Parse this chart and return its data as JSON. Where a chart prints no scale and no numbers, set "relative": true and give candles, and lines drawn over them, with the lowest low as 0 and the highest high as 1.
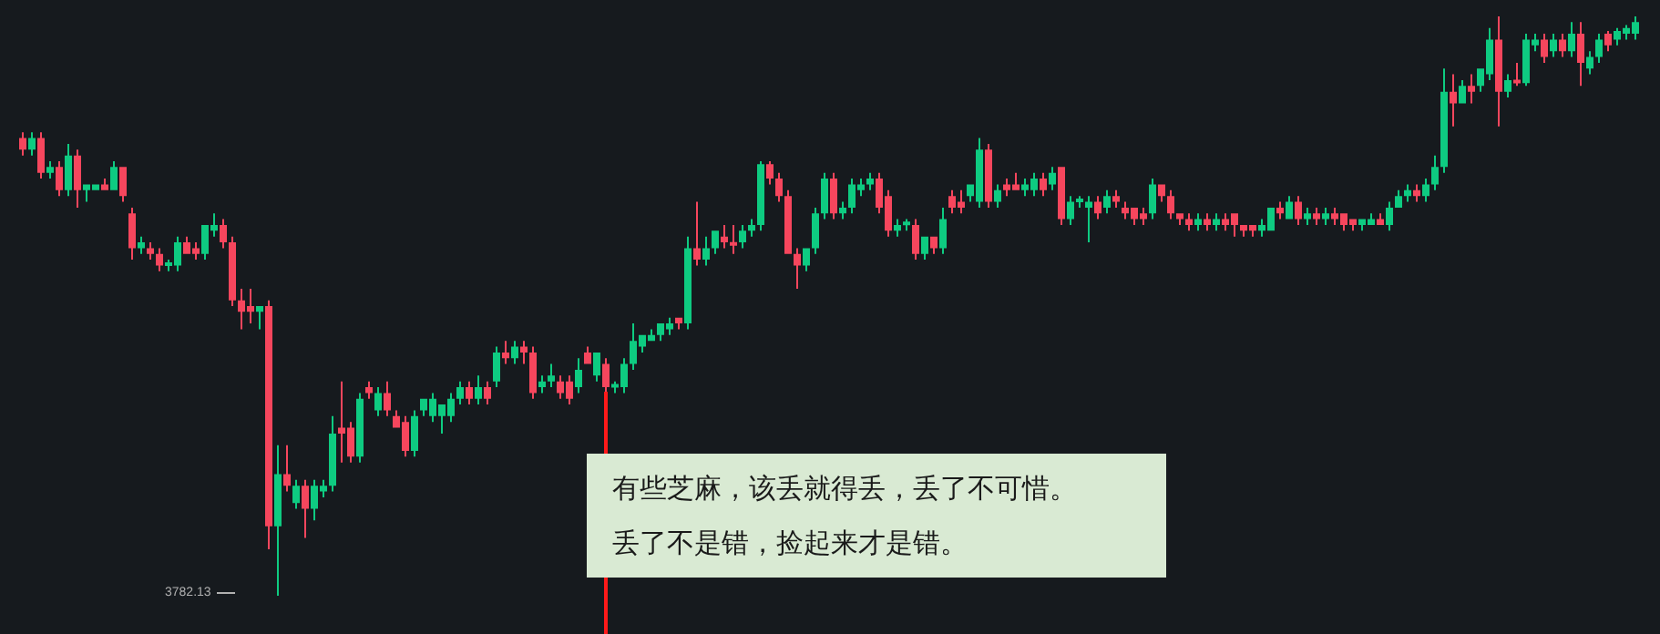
{
  "chart_data": {
    "type": "candlestick",
    "relative": true,
    "categories": [
      null,
      null,
      null,
      null,
      null,
      null,
      null,
      null,
      null,
      null,
      null,
      null,
      null,
      null,
      null,
      null,
      null,
      null,
      null,
      null,
      null,
      null,
      null,
      null,
      null,
      null,
      null,
      null,
      null,
      null,
      null,
      null,
      null,
      null,
      null,
      null,
      null,
      null,
      null,
      null,
      null,
      null,
      null,
      null,
      null,
      null,
      null,
      null,
      null,
      null,
      null,
      null,
      null,
      null,
      null,
      null,
      null,
      null,
      null,
      null,
      null,
      null,
      null,
      null,
      null,
      null,
      null,
      null,
      null,
      null,
      null,
      null,
      null,
      null,
      null,
      null,
      null,
      null,
      null,
      null,
      null,
      null,
      null,
      null,
      null,
      null,
      null,
      null,
      null,
      null,
      null,
      null,
      null,
      null,
      null,
      null,
      null,
      null,
      null,
      null,
      null,
      null,
      null,
      null,
      null,
      null,
      null,
      null,
      null,
      null,
      null,
      null,
      null,
      null,
      null,
      null,
      null,
      null,
      null,
      null,
      null,
      null,
      null,
      null,
      null,
      null,
      null,
      null,
      null,
      null,
      null,
      null,
      null,
      null,
      null,
      null,
      null,
      null,
      null,
      null,
      null,
      null,
      null,
      null,
      null,
      null,
      null,
      null,
      null,
      null,
      null,
      null,
      null,
      null,
      null,
      null,
      null,
      null,
      null,
      null,
      null,
      null,
      null,
      null,
      null,
      null,
      null,
      null,
      null,
      null,
      null,
      null,
      null,
      null,
      null,
      null,
      null,
      null
    ],
    "ohlc": [
      [
        0.79,
        0.8,
        0.76,
        0.77
      ],
      [
        0.77,
        0.8,
        0.76,
        0.79
      ],
      [
        0.79,
        0.8,
        0.72,
        0.73
      ],
      [
        0.73,
        0.75,
        0.72,
        0.74
      ],
      [
        0.74,
        0.75,
        0.69,
        0.7
      ],
      [
        0.7,
        0.78,
        0.69,
        0.76
      ],
      [
        0.76,
        0.77,
        0.67,
        0.7
      ],
      [
        0.7,
        0.71,
        0.68,
        0.71
      ],
      [
        0.7,
        0.71,
        0.7,
        0.71
      ],
      [
        0.71,
        0.72,
        0.7,
        0.7
      ],
      [
        0.7,
        0.75,
        0.7,
        0.74
      ],
      [
        0.74,
        0.74,
        0.68,
        0.69
      ],
      [
        0.66,
        0.67,
        0.58,
        0.6
      ],
      [
        0.6,
        0.62,
        0.59,
        0.61
      ],
      [
        0.6,
        0.61,
        0.58,
        0.59
      ],
      [
        0.59,
        0.6,
        0.56,
        0.57
      ],
      [
        0.57,
        0.58,
        0.56,
        0.575
      ],
      [
        0.57,
        0.62,
        0.56,
        0.61
      ],
      [
        0.61,
        0.62,
        0.59,
        0.59
      ],
      [
        0.6,
        0.61,
        0.58,
        0.59
      ],
      [
        0.59,
        0.64,
        0.58,
        0.64
      ],
      [
        0.63,
        0.66,
        0.62,
        0.64
      ],
      [
        0.64,
        0.65,
        0.6,
        0.61
      ],
      [
        0.61,
        0.62,
        0.5,
        0.51
      ],
      [
        0.51,
        0.53,
        0.46,
        0.49
      ],
      [
        0.5,
        0.53,
        0.47,
        0.49
      ],
      [
        0.49,
        0.5,
        0.46,
        0.5
      ],
      [
        0.5,
        0.51,
        0.08,
        0.12
      ],
      [
        0.12,
        0.26,
        0.0,
        0.21
      ],
      [
        0.21,
        0.26,
        0.18,
        0.19
      ],
      [
        0.16,
        0.2,
        0.15,
        0.19
      ],
      [
        0.19,
        0.2,
        0.1,
        0.15
      ],
      [
        0.15,
        0.2,
        0.13,
        0.19
      ],
      [
        0.18,
        0.2,
        0.17,
        0.19
      ],
      [
        0.19,
        0.31,
        0.18,
        0.28
      ],
      [
        0.29,
        0.37,
        0.23,
        0.28
      ],
      [
        0.29,
        0.3,
        0.23,
        0.24
      ],
      [
        0.24,
        0.35,
        0.23,
        0.34
      ],
      [
        0.36,
        0.37,
        0.34,
        0.35
      ],
      [
        0.32,
        0.36,
        0.31,
        0.35
      ],
      [
        0.35,
        0.37,
        0.31,
        0.32
      ],
      [
        0.31,
        0.32,
        0.29,
        0.29
      ],
      [
        0.3,
        0.31,
        0.24,
        0.25
      ],
      [
        0.25,
        0.32,
        0.24,
        0.31
      ],
      [
        0.32,
        0.34,
        0.31,
        0.34
      ],
      [
        0.31,
        0.35,
        0.3,
        0.34
      ],
      [
        0.31,
        0.33,
        0.28,
        0.33
      ],
      [
        0.31,
        0.35,
        0.3,
        0.34
      ],
      [
        0.34,
        0.37,
        0.33,
        0.36
      ],
      [
        0.36,
        0.37,
        0.33,
        0.34
      ],
      [
        0.34,
        0.38,
        0.33,
        0.36
      ],
      [
        0.36,
        0.37,
        0.33,
        0.34
      ],
      [
        0.37,
        0.43,
        0.36,
        0.42
      ],
      [
        0.42,
        0.44,
        0.4,
        0.41
      ],
      [
        0.41,
        0.44,
        0.4,
        0.43
      ],
      [
        0.43,
        0.44,
        0.4,
        0.42
      ],
      [
        0.42,
        0.43,
        0.34,
        0.35
      ],
      [
        0.36,
        0.38,
        0.35,
        0.37
      ],
      [
        0.37,
        0.4,
        0.36,
        0.38
      ],
      [
        0.37,
        0.38,
        0.34,
        0.35
      ],
      [
        0.37,
        0.38,
        0.33,
        0.34
      ],
      [
        0.36,
        0.41,
        0.35,
        0.39
      ],
      [
        0.42,
        0.43,
        0.4,
        0.4
      ],
      [
        0.38,
        0.42,
        0.37,
        0.42
      ],
      [
        0.4,
        0.41,
        0.35,
        0.36
      ],
      [
        0.36,
        0.37,
        0.35,
        0.365
      ],
      [
        0.36,
        0.41,
        0.35,
        0.4
      ],
      [
        0.4,
        0.47,
        0.39,
        0.44
      ],
      [
        0.43,
        0.45,
        0.42,
        0.45
      ],
      [
        0.44,
        0.46,
        0.44,
        0.45
      ],
      [
        0.45,
        0.47,
        0.44,
        0.47
      ],
      [
        0.46,
        0.48,
        0.45,
        0.47
      ],
      [
        0.48,
        0.48,
        0.46,
        0.47
      ],
      [
        0.47,
        0.62,
        0.46,
        0.6
      ],
      [
        0.6,
        0.68,
        0.57,
        0.58
      ],
      [
        0.58,
        0.62,
        0.57,
        0.6
      ],
      [
        0.6,
        0.63,
        0.59,
        0.63
      ],
      [
        0.62,
        0.64,
        0.6,
        0.61
      ],
      [
        0.61,
        0.64,
        0.59,
        0.605
      ],
      [
        0.61,
        0.64,
        0.6,
        0.63
      ],
      [
        0.63,
        0.65,
        0.62,
        0.64
      ],
      [
        0.64,
        0.75,
        0.63,
        0.745
      ],
      [
        0.745,
        0.75,
        0.71,
        0.72
      ],
      [
        0.72,
        0.73,
        0.68,
        0.69
      ],
      [
        0.69,
        0.7,
        0.59,
        0.59
      ],
      [
        0.59,
        0.6,
        0.53,
        0.57
      ],
      [
        0.57,
        0.6,
        0.56,
        0.6
      ],
      [
        0.6,
        0.67,
        0.59,
        0.66
      ],
      [
        0.66,
        0.73,
        0.65,
        0.72
      ],
      [
        0.72,
        0.73,
        0.65,
        0.66
      ],
      [
        0.66,
        0.68,
        0.65,
        0.67
      ],
      [
        0.67,
        0.72,
        0.66,
        0.71
      ],
      [
        0.7,
        0.72,
        0.69,
        0.71
      ],
      [
        0.71,
        0.73,
        0.7,
        0.72
      ],
      [
        0.72,
        0.73,
        0.66,
        0.67
      ],
      [
        0.69,
        0.7,
        0.62,
        0.63
      ],
      [
        0.63,
        0.65,
        0.62,
        0.64
      ],
      [
        0.64,
        0.65,
        0.63,
        0.645
      ],
      [
        0.64,
        0.65,
        0.58,
        0.59
      ],
      [
        0.59,
        0.62,
        0.58,
        0.62
      ],
      [
        0.62,
        0.62,
        0.59,
        0.6
      ],
      [
        0.6,
        0.67,
        0.59,
        0.65
      ],
      [
        0.69,
        0.7,
        0.66,
        0.67
      ],
      [
        0.68,
        0.7,
        0.66,
        0.67
      ],
      [
        0.69,
        0.71,
        0.68,
        0.71
      ],
      [
        0.68,
        0.79,
        0.67,
        0.77
      ],
      [
        0.77,
        0.78,
        0.67,
        0.68
      ],
      [
        0.68,
        0.71,
        0.67,
        0.7
      ],
      [
        0.71,
        0.72,
        0.69,
        0.7
      ],
      [
        0.71,
        0.73,
        0.7,
        0.7
      ],
      [
        0.7,
        0.72,
        0.69,
        0.71
      ],
      [
        0.7,
        0.73,
        0.69,
        0.72
      ],
      [
        0.72,
        0.73,
        0.69,
        0.7
      ],
      [
        0.71,
        0.74,
        0.7,
        0.73
      ],
      [
        0.74,
        0.74,
        0.64,
        0.65
      ],
      [
        0.65,
        0.69,
        0.64,
        0.68
      ],
      [
        0.68,
        0.69,
        0.67,
        0.685
      ],
      [
        0.67,
        0.69,
        0.61,
        0.68
      ],
      [
        0.68,
        0.69,
        0.65,
        0.66
      ],
      [
        0.67,
        0.7,
        0.66,
        0.69
      ],
      [
        0.69,
        0.7,
        0.67,
        0.68
      ],
      [
        0.67,
        0.68,
        0.65,
        0.66
      ],
      [
        0.67,
        0.67,
        0.64,
        0.65
      ],
      [
        0.66,
        0.67,
        0.64,
        0.65
      ],
      [
        0.66,
        0.72,
        0.65,
        0.71
      ],
      [
        0.71,
        0.71,
        0.68,
        0.69
      ],
      [
        0.69,
        0.7,
        0.65,
        0.66
      ],
      [
        0.66,
        0.66,
        0.64,
        0.65
      ],
      [
        0.65,
        0.66,
        0.63,
        0.64
      ],
      [
        0.64,
        0.66,
        0.63,
        0.65
      ],
      [
        0.65,
        0.66,
        0.63,
        0.64
      ],
      [
        0.64,
        0.66,
        0.63,
        0.65
      ],
      [
        0.65,
        0.66,
        0.63,
        0.64
      ],
      [
        0.66,
        0.66,
        0.62,
        0.64
      ],
      [
        0.64,
        0.64,
        0.62,
        0.63
      ],
      [
        0.64,
        0.64,
        0.62,
        0.63
      ],
      [
        0.63,
        0.65,
        0.62,
        0.64
      ],
      [
        0.63,
        0.67,
        0.63,
        0.67
      ],
      [
        0.67,
        0.68,
        0.65,
        0.66
      ],
      [
        0.65,
        0.69,
        0.65,
        0.68
      ],
      [
        0.68,
        0.69,
        0.64,
        0.65
      ],
      [
        0.65,
        0.67,
        0.64,
        0.66
      ],
      [
        0.66,
        0.67,
        0.64,
        0.65
      ],
      [
        0.65,
        0.67,
        0.64,
        0.66
      ],
      [
        0.66,
        0.67,
        0.64,
        0.65
      ],
      [
        0.66,
        0.66,
        0.63,
        0.64
      ],
      [
        0.65,
        0.65,
        0.63,
        0.64
      ],
      [
        0.64,
        0.65,
        0.63,
        0.65
      ],
      [
        0.64,
        0.66,
        0.64,
        0.65
      ],
      [
        0.65,
        0.66,
        0.64,
        0.64
      ],
      [
        0.64,
        0.68,
        0.63,
        0.67
      ],
      [
        0.67,
        0.7,
        0.67,
        0.69
      ],
      [
        0.69,
        0.71,
        0.68,
        0.7
      ],
      [
        0.7,
        0.71,
        0.68,
        0.69
      ],
      [
        0.69,
        0.72,
        0.68,
        0.71
      ],
      [
        0.71,
        0.76,
        0.7,
        0.74
      ],
      [
        0.74,
        0.91,
        0.73,
        0.87
      ],
      [
        0.87,
        0.9,
        0.81,
        0.85
      ],
      [
        0.85,
        0.89,
        0.85,
        0.88
      ],
      [
        0.88,
        0.9,
        0.85,
        0.87
      ],
      [
        0.88,
        0.91,
        0.87,
        0.91
      ],
      [
        0.9,
        0.98,
        0.89,
        0.96
      ],
      [
        0.96,
        1.0,
        0.81,
        0.87
      ],
      [
        0.87,
        0.9,
        0.86,
        0.89
      ],
      [
        0.89,
        0.92,
        0.88,
        0.885
      ],
      [
        0.885,
        0.97,
        0.88,
        0.96
      ],
      [
        0.95,
        0.97,
        0.94,
        0.96
      ],
      [
        0.96,
        0.97,
        0.92,
        0.93
      ],
      [
        0.94,
        0.97,
        0.93,
        0.96
      ],
      [
        0.96,
        0.97,
        0.93,
        0.94
      ],
      [
        0.94,
        0.99,
        0.93,
        0.97
      ],
      [
        0.97,
        0.99,
        0.88,
        0.92
      ],
      [
        0.91,
        0.94,
        0.9,
        0.93
      ],
      [
        0.93,
        0.97,
        0.92,
        0.96
      ],
      [
        0.97,
        0.975,
        0.94,
        0.95
      ],
      [
        0.96,
        0.98,
        0.95,
        0.975
      ],
      [
        0.97,
        0.985,
        0.96,
        0.98
      ],
      [
        0.97,
        1.0,
        0.96,
        0.99
      ]
    ],
    "annotations": [
      "3782.13",
      "有些芝麻，该丢就得丢，丢了不可惜。",
      "丢了不是错，捡起来才是错。"
    ]
  }
}
